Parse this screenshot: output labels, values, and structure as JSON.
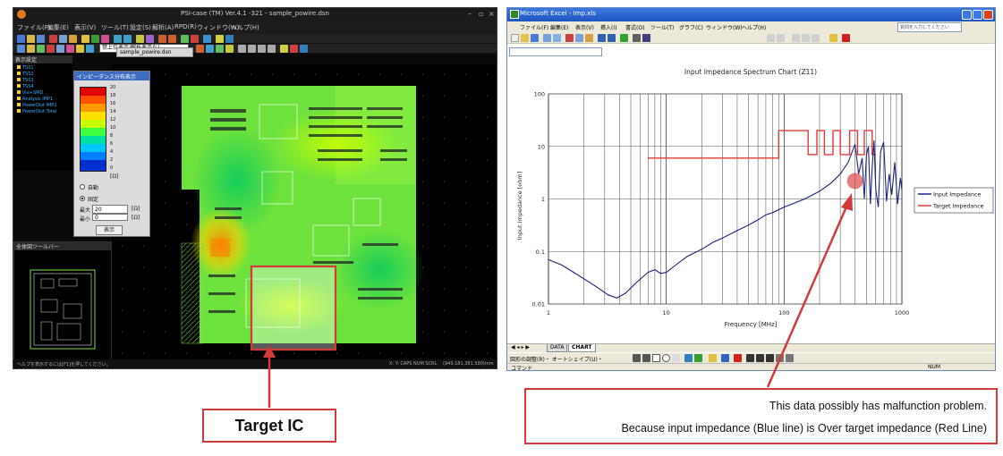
{
  "pcb_window": {
    "title": "PSI-case (TM) Ver.4.1 -321 - sample_powire.dsn",
    "menu": [
      "ファイル(F)",
      "編集(E)",
      "表示(V)",
      "ツール(T)",
      "設定(S)",
      "解析(A)",
      "RPD(R)",
      "ウィンドウ(W)",
      "ヘルプ(H)"
    ],
    "combo_value": "禁上位表示/解析表示なし",
    "active_tab": "sample_powire.dsn",
    "tree_title": "表示設定",
    "tree_items": [
      "TSS1",
      "TSS2",
      "TSS3",
      "TSS4",
      "Via+SMD",
      "Analysis IMP1",
      "PowerDist IMP1",
      "PowerDist Total"
    ],
    "impedance_panel": {
      "title": "インピーダンス分布表示",
      "legend_values": [
        "20",
        "18",
        "16",
        "14",
        "12",
        "10",
        "8",
        "6",
        "4",
        "2",
        "0"
      ],
      "unit": "[Ω]",
      "mode_auto": "自動",
      "mode_fixed": "固定",
      "max_label": "最大",
      "max_value": "20",
      "max_unit": "[Ω]",
      "min_label": "最小",
      "min_value": "0",
      "min_unit": "[Ω]",
      "display_button": "表示"
    },
    "minimap_title": "全体図ツールバー",
    "status_left": "ヘルプを表示するには[F1]を押してください。",
    "status_right": "X:   Y:   CAPS NUM SCRL",
    "status_coords": "(949.181,381.580)mm"
  },
  "excel_window": {
    "title": "Microsoft Excel - Imp.xls",
    "menu": [
      "ファイル(F)",
      "編集(E)",
      "表示(V)",
      "挿入(I)",
      "書式(O)",
      "ツール(T)",
      "グラフ(C)",
      "ウィンドウ(W)",
      "ヘルプ(H)"
    ],
    "help_placeholder": "質問を入力してください",
    "sheet_tabs": [
      "DATA",
      "CHART"
    ],
    "active_sheet": "CHART",
    "draw_toolbar_label": "図形の調整(R)・  オートシェイプ(U)・",
    "status_left": "コマンド",
    "status_right": "NUM"
  },
  "chart_data": {
    "type": "line",
    "title": "Input Impedance Spectrum Chart (Z11)",
    "xlabel": "Frequency [MHz]",
    "ylabel": "Input impedance [ohm]",
    "x_scale": "log",
    "y_scale": "log",
    "xlim": [
      1,
      1000
    ],
    "ylim": [
      0.01,
      100
    ],
    "x_ticks": [
      "1",
      "10",
      "100",
      "1000"
    ],
    "y_ticks": [
      "100",
      "10",
      "1",
      "0.1",
      "0.01"
    ],
    "grid": true,
    "legend_position": "right",
    "series": [
      {
        "name": "Input Impedance",
        "color": "#1a237e",
        "x": [
          1,
          1.3,
          1.8,
          2.5,
          3.2,
          3.8,
          4.5,
          5.5,
          7,
          8,
          9,
          10,
          12,
          15,
          20,
          25,
          30,
          40,
          50,
          60,
          70,
          80,
          100,
          150,
          200,
          250,
          300,
          350,
          400,
          430,
          460,
          480,
          500,
          520,
          540,
          560,
          580,
          600,
          630,
          660,
          700,
          740,
          780,
          820,
          870,
          920,
          970,
          1000
        ],
        "y": [
          0.07,
          0.055,
          0.035,
          0.022,
          0.015,
          0.013,
          0.016,
          0.025,
          0.04,
          0.045,
          0.038,
          0.04,
          0.055,
          0.08,
          0.11,
          0.15,
          0.18,
          0.25,
          0.32,
          0.4,
          0.5,
          0.55,
          0.7,
          1.0,
          1.4,
          2.0,
          3.0,
          5.0,
          11.0,
          3.0,
          6.0,
          1.0,
          7.0,
          10.0,
          0.8,
          4.0,
          13.0,
          1.5,
          0.7,
          8.0,
          12.0,
          0.9,
          3.0,
          1.2,
          5.0,
          0.8,
          2.5,
          1.5
        ]
      },
      {
        "name": "Target Impedance",
        "color": "#e53935",
        "x": [
          7,
          90,
          90,
          160,
          160,
          190,
          190,
          220,
          220,
          260,
          260,
          300,
          300,
          360,
          360,
          420,
          420,
          480,
          480,
          560,
          560,
          600
        ],
        "y": [
          6,
          6,
          20,
          20,
          7,
          7,
          20,
          20,
          7,
          7,
          20,
          20,
          7,
          7,
          20,
          20,
          7,
          7,
          20,
          20,
          7,
          7
        ]
      }
    ]
  },
  "annotations": {
    "target_label": "Target  IC",
    "note_line1": "This data possibly has malfunction problem.",
    "note_line2": "Because input impedance (Blue line) is Over target impedance (Red Line)",
    "arrow_color": "#d53a3a"
  }
}
